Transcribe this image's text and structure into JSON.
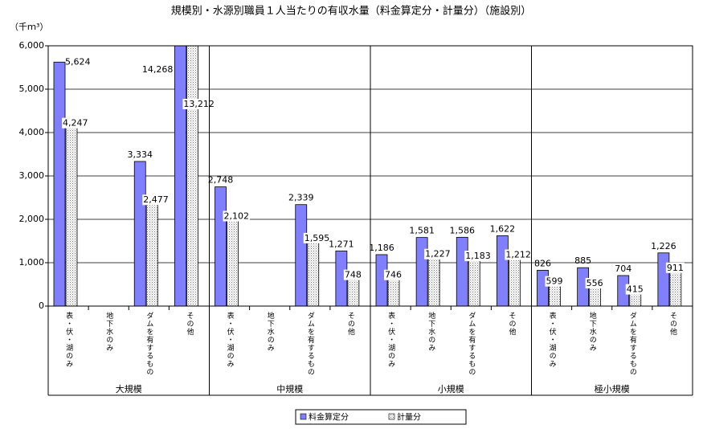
{
  "chart_data": {
    "type": "bar",
    "title": "規模別・水源別職員１人当たりの有収水量（料金算定分・計量分）（施設別）",
    "y_axis_label": "（千ｍ³）",
    "groups": [
      {
        "name": "大規模",
        "categories": [
          "表・伏・湖のみ",
          "地下水のみ",
          "ダムを有するもの",
          "その他"
        ]
      },
      {
        "name": "中規模",
        "categories": [
          "表・伏・湖のみ",
          "地下水のみ",
          "ダムを有するもの",
          "その他"
        ]
      },
      {
        "name": "小規模",
        "categories": [
          "表・伏・湖のみ",
          "地下水のみ",
          "ダムを有するもの",
          "その他"
        ]
      },
      {
        "name": "極小規模",
        "categories": [
          "表・伏・湖のみ",
          "地下水のみ",
          "ダムを有するもの",
          "その他"
        ]
      }
    ],
    "series": [
      {
        "name": "料金算定分",
        "color": "#8080ff",
        "values": [
          5624,
          null,
          3334,
          14268,
          2748,
          null,
          2339,
          1271,
          1186,
          1581,
          1586,
          1622,
          826,
          885,
          704,
          1226
        ],
        "value_labels": [
          "5,624",
          null,
          "3,334",
          "14,268",
          "2,748",
          null,
          "2,339",
          "1,271",
          "1,186",
          "1,581",
          "1,586",
          "1,622",
          "826",
          "885",
          "704",
          "1,226"
        ]
      },
      {
        "name": "計量分",
        "color": "#d4d4d4",
        "values": [
          4247,
          null,
          2477,
          13212,
          2102,
          null,
          1595,
          748,
          746,
          1227,
          1183,
          1212,
          599,
          556,
          415,
          911
        ],
        "value_labels": [
          "4,247",
          null,
          "2,477",
          "13,212",
          "2,102",
          null,
          "1,595",
          "748",
          "746",
          "1,227",
          "1,183",
          "1,212",
          "599",
          "556",
          "415",
          "911"
        ]
      }
    ],
    "ylim": [
      0,
      6000
    ],
    "yticks": [
      0,
      {
        "value": 1000,
        "label": "1,000"
      },
      {
        "value": 2000,
        "label": "2,000"
      },
      {
        "value": 3000,
        "label": "3,000"
      },
      {
        "value": 4000,
        "label": "4,000"
      },
      {
        "value": 5000,
        "label": "5,000"
      },
      {
        "value": 6000,
        "label": "6,000"
      }
    ],
    "grid": true,
    "legend": "bottom"
  }
}
